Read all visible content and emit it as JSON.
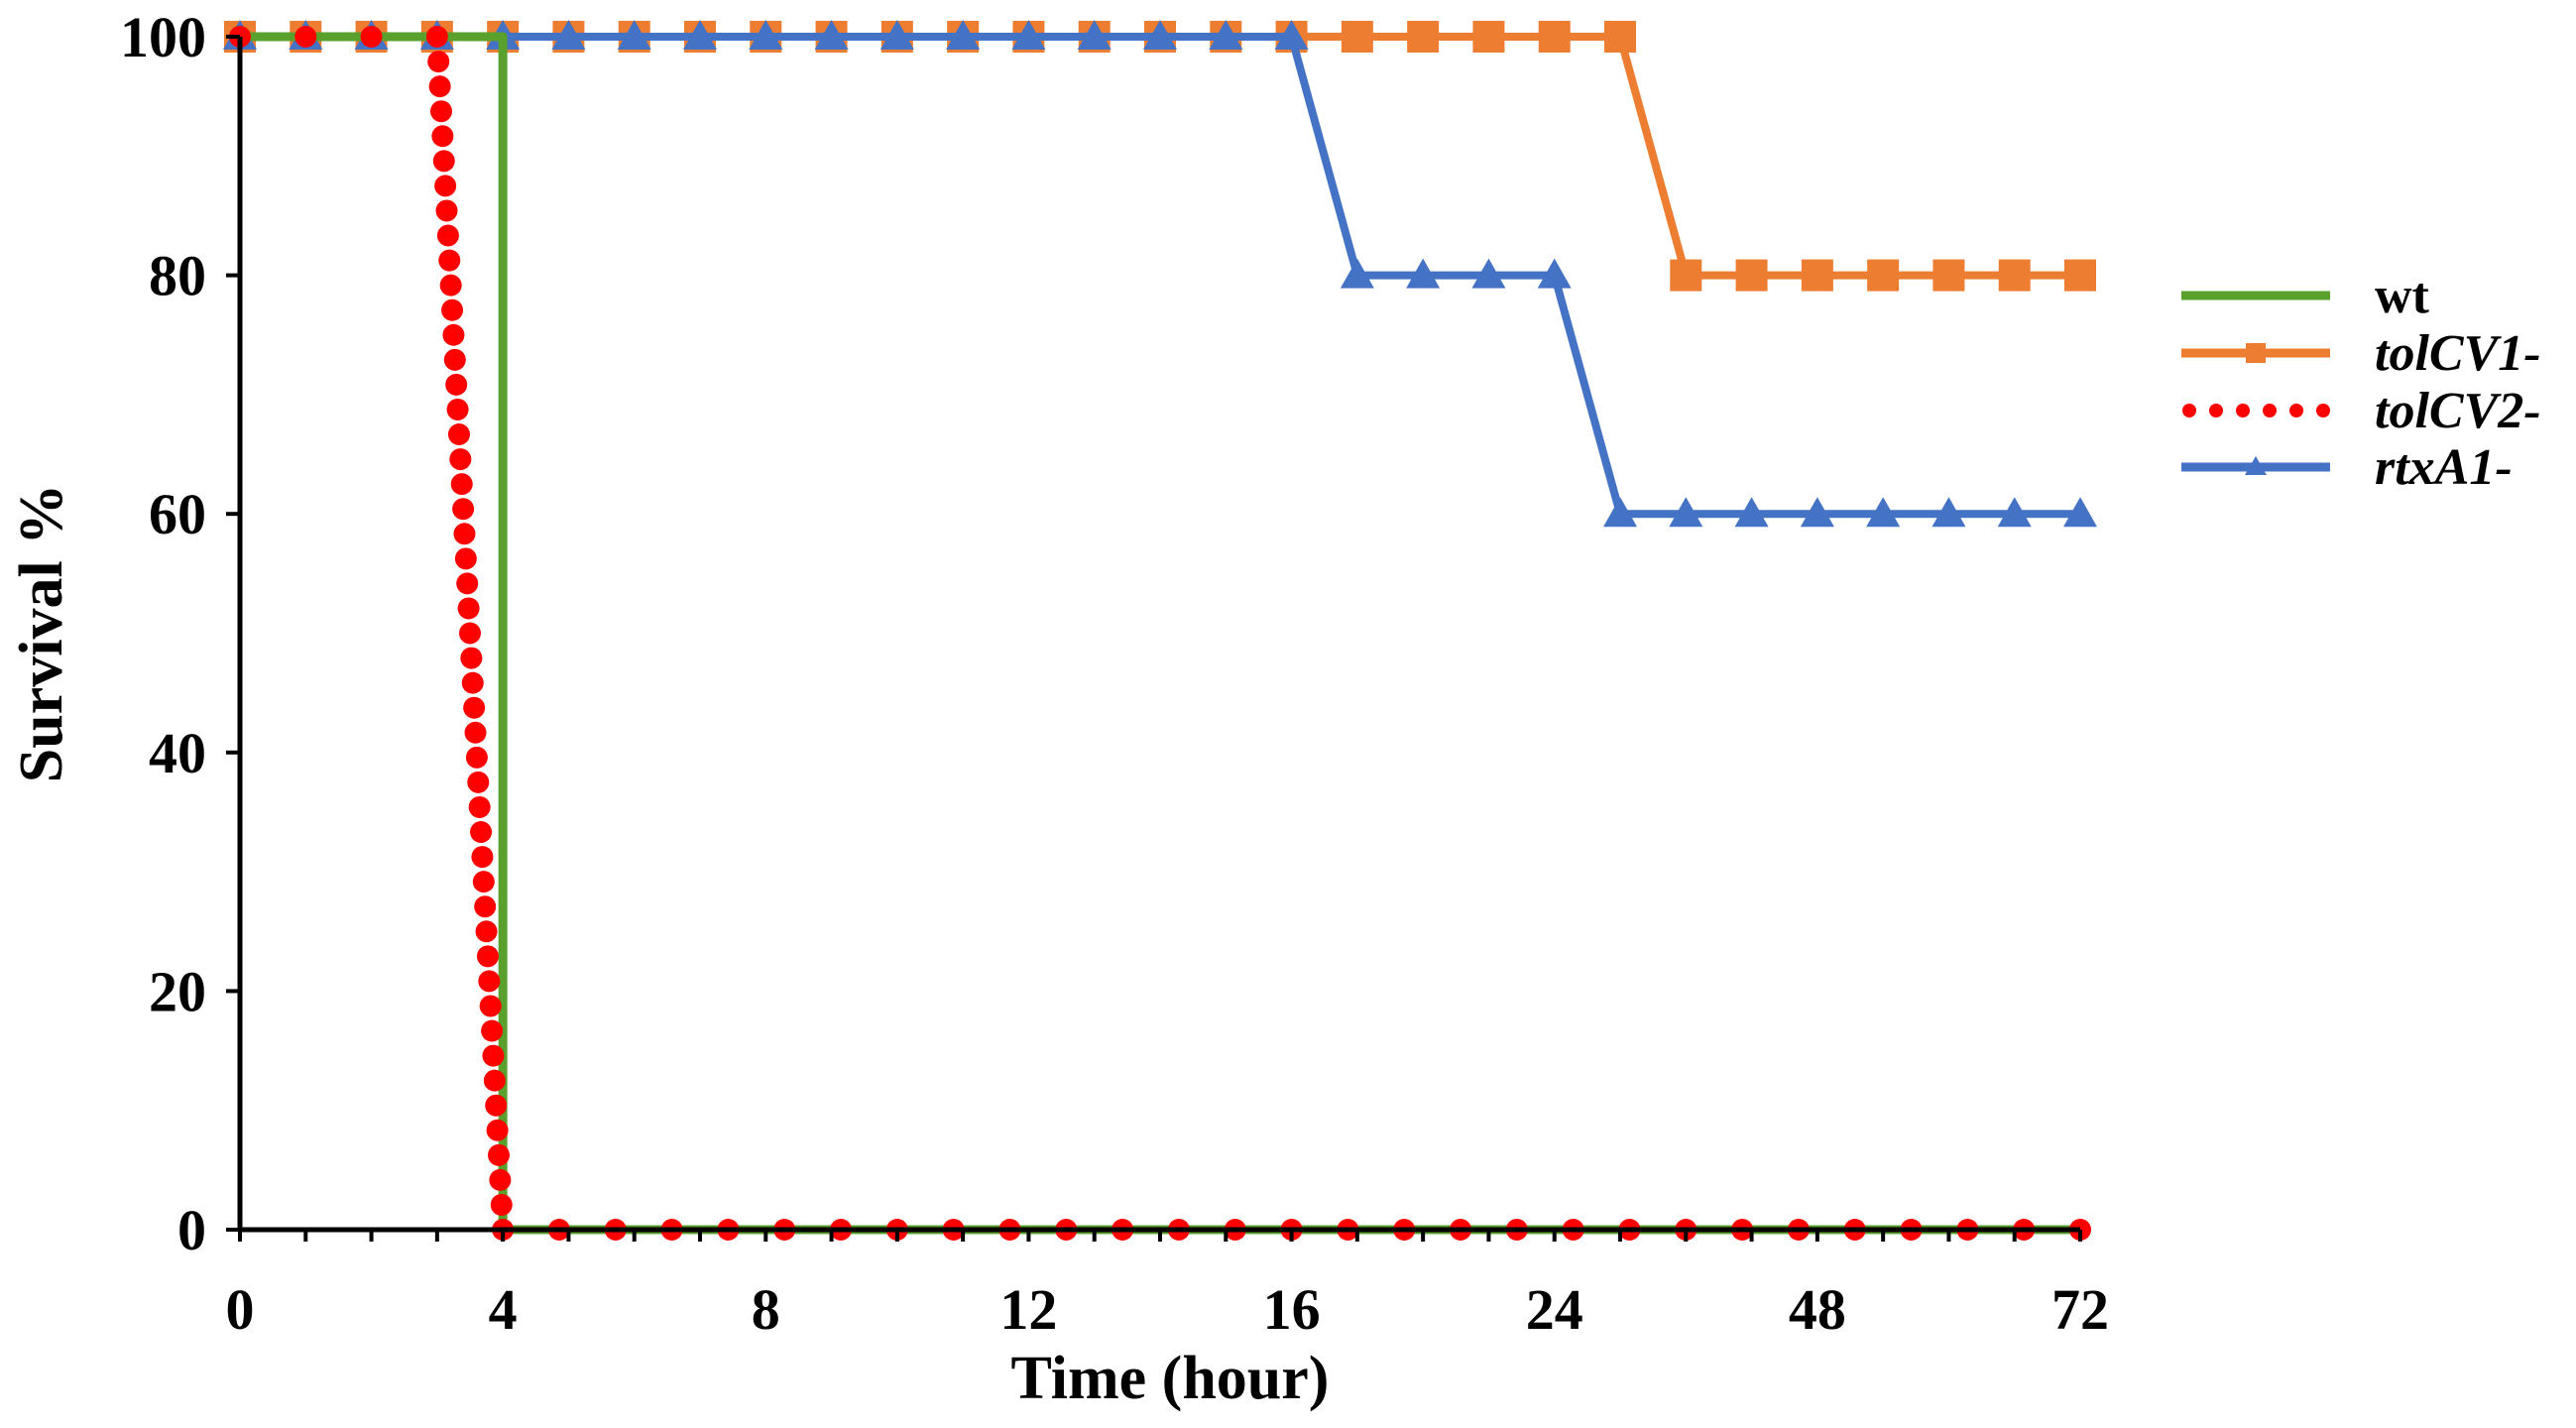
{
  "chart_data": {
    "type": "line",
    "title": "",
    "xlabel": "Time (hour)",
    "ylabel": "Survival %",
    "x_tick_labels": [
      "0",
      "4",
      "8",
      "12",
      "16",
      "24",
      "48",
      "72"
    ],
    "y_tick_labels": [
      "0",
      "20",
      "40",
      "60",
      "80",
      "100"
    ],
    "ylim": [
      0,
      100
    ],
    "x_scale": "categorical (0, 4, 8, 12 h evenly spaced; then 16, 24, 48, 72 h at equal intervals)",
    "grid": false,
    "legend_position": "right",
    "x_positions": [
      0,
      0.5,
      1,
      1.5,
      2,
      2.5,
      3,
      3.5,
      4,
      4.5,
      5,
      5.5,
      6,
      6.5,
      7,
      7.5,
      8,
      8.5,
      9,
      9.5,
      10,
      10.5,
      11,
      11.5,
      12,
      12.5,
      13,
      13.5,
      14,
      14.5,
      15,
      15.5,
      16,
      16.5,
      17,
      17.5,
      18,
      18.5,
      19,
      19.5,
      20,
      20.5,
      21,
      21.5,
      22,
      22.5,
      23,
      23.5,
      24,
      24.5,
      25,
      25.5,
      26,
      26.5,
      27,
      27.5,
      28
    ],
    "series": [
      {
        "name": "wt",
        "color": "#5aa02c",
        "line_style": "solid",
        "marker": "none",
        "points": [
          [
            0,
            100
          ],
          [
            4,
            100
          ],
          [
            4,
            0
          ],
          [
            28,
            0
          ]
        ]
      },
      {
        "name": "tolCV1-",
        "color": "#ed7d31",
        "line_style": "solid",
        "marker": "square",
        "points": [
          [
            0,
            100
          ],
          [
            21,
            100
          ],
          [
            22,
            80
          ],
          [
            28,
            80
          ]
        ],
        "marker_x": [
          0,
          1,
          2,
          3,
          4,
          5,
          6,
          7,
          8,
          9,
          10,
          11,
          12,
          13,
          14,
          15,
          16,
          17,
          18,
          19,
          20,
          21,
          22,
          23,
          24,
          25,
          26,
          27,
          28
        ]
      },
      {
        "name": "tolCV2-",
        "color": "#ff0000",
        "line_style": "dotted",
        "marker": "circle",
        "points": [
          [
            0,
            100
          ],
          [
            3,
            100
          ],
          [
            4,
            0
          ],
          [
            28,
            0
          ]
        ]
      },
      {
        "name": "rtxA1-",
        "color": "#4472c4",
        "line_style": "solid",
        "marker": "triangle",
        "points": [
          [
            0,
            100
          ],
          [
            16,
            100
          ],
          [
            17,
            80
          ],
          [
            20,
            80
          ],
          [
            21,
            60
          ],
          [
            28,
            60
          ]
        ],
        "marker_x": [
          0,
          1,
          2,
          3,
          4,
          5,
          6,
          7,
          8,
          9,
          10,
          11,
          12,
          13,
          14,
          15,
          16,
          17,
          18,
          19,
          20,
          21,
          22,
          23,
          24,
          25,
          26,
          27,
          28
        ]
      }
    ],
    "legend_entries": [
      {
        "label": "wt",
        "italic": false
      },
      {
        "label": "tolCV1-",
        "italic": true
      },
      {
        "label": "tolCV2-",
        "italic": true
      },
      {
        "label": "rtxA1-",
        "italic": true
      }
    ]
  }
}
